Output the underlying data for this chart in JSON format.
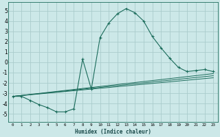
{
  "xlabel": "Humidex (Indice chaleur)",
  "bg_color": "#cce8e8",
  "grid_color": "#aacccc",
  "line_color": "#1a6b5a",
  "xlim": [
    -0.5,
    23.5
  ],
  "ylim": [
    -5.8,
    5.8
  ],
  "xticks": [
    0,
    1,
    2,
    3,
    4,
    5,
    6,
    7,
    8,
    9,
    10,
    11,
    12,
    13,
    14,
    15,
    16,
    17,
    18,
    19,
    20,
    21,
    22,
    23
  ],
  "yticks": [
    -5,
    -4,
    -3,
    -2,
    -1,
    0,
    1,
    2,
    3,
    4,
    5
  ],
  "main_series": {
    "x": [
      0,
      1,
      2,
      3,
      4,
      5,
      6,
      7,
      8,
      9,
      10,
      11,
      12,
      13,
      14,
      15,
      16,
      17,
      18,
      19,
      20,
      21,
      22,
      23
    ],
    "y": [
      -3.3,
      -3.3,
      -3.7,
      -4.1,
      -4.4,
      -4.8,
      -4.8,
      -4.5,
      0.3,
      -2.6,
      2.4,
      3.8,
      4.7,
      5.2,
      4.8,
      4.0,
      2.5,
      1.4,
      0.4,
      -0.5,
      -0.9,
      -0.8,
      -0.7,
      -0.9
    ]
  },
  "trend_lines": [
    {
      "x": [
        0,
        23
      ],
      "y": [
        -3.3,
        -1.1
      ]
    },
    {
      "x": [
        0,
        23
      ],
      "y": [
        -3.3,
        -1.3
      ]
    },
    {
      "x": [
        0,
        23
      ],
      "y": [
        -3.3,
        -1.5
      ]
    }
  ]
}
